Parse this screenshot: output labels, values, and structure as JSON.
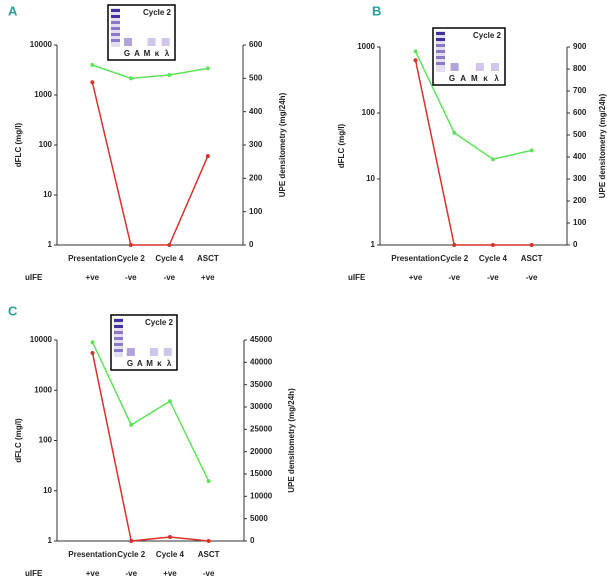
{
  "chart_data": [
    {
      "type": "line",
      "label": "A",
      "log_scale": true,
      "categories": [
        "Presentation",
        "Cycle 2",
        "Cycle 4",
        "ASCT"
      ],
      "ylabel": "dFLC (mg/l)",
      "y2label": "UPE densitometry (mg/24h)",
      "ylim": [
        1,
        10000
      ],
      "yticks": [
        1,
        10,
        100,
        1000,
        10000
      ],
      "y2lim": [
        0,
        600
      ],
      "y2ticks": [
        0,
        100,
        200,
        300,
        400,
        500,
        600
      ],
      "series": [
        {
          "color": "#d8322c",
          "values": [
            1800,
            1,
            1,
            60
          ]
        },
        {
          "color": "#5ee35a",
          "axis": "y2",
          "values": [
            540,
            500,
            510,
            530
          ]
        }
      ],
      "row_label": "uIFE",
      "row_values": [
        "+ve",
        "-ve",
        "-ve",
        "+ve"
      ],
      "inset_title": "Cycle 2",
      "inset_lanes": [
        "G",
        "A",
        "M",
        "κ",
        "λ"
      ]
    },
    {
      "type": "line",
      "label": "B",
      "log_scale": true,
      "categories": [
        "Presentation",
        "Cycle 2",
        "Cycle 4",
        "ASCT"
      ],
      "ylabel": "dFLC (mg/l)",
      "y2label": "UPE densitometry (mg/24h)",
      "ylim": [
        1,
        1000
      ],
      "yticks": [
        1,
        10,
        100,
        1000
      ],
      "y2lim": [
        0,
        900
      ],
      "y2ticks": [
        0,
        100,
        200,
        300,
        400,
        500,
        600,
        700,
        800,
        900
      ],
      "series": [
        {
          "color": "#d8322c",
          "values": [
            630,
            1,
            1,
            1
          ]
        },
        {
          "color": "#5ee35a",
          "axis": "y2",
          "values": [
            880,
            510,
            390,
            430
          ]
        }
      ],
      "row_label": "uIFE",
      "row_values": [
        "+ve",
        "-ve",
        "-ve",
        "-ve"
      ],
      "inset_title": "Cycle 2",
      "inset_lanes": [
        "G",
        "A",
        "M",
        "κ",
        "λ"
      ]
    },
    {
      "type": "line",
      "label": "C",
      "log_scale": true,
      "categories": [
        "Presentation",
        "Cycle 2",
        "Cycle 4",
        "ASCT"
      ],
      "ylabel": "dFLC (mg/l)",
      "y2label": "UPE densitometry (mg/24h)",
      "ylim": [
        1,
        10000
      ],
      "yticks": [
        1,
        10,
        100,
        1000,
        10000
      ],
      "y2lim": [
        0,
        45000
      ],
      "y2ticks": [
        0,
        5000,
        10000,
        15000,
        20000,
        25000,
        30000,
        35000,
        40000,
        45000
      ],
      "series": [
        {
          "color": "#d8322c",
          "values": [
            5500,
            1,
            1.2,
            1
          ]
        },
        {
          "color": "#5ee35a",
          "axis": "y2",
          "values": [
            44500,
            26000,
            31300,
            13400
          ]
        }
      ],
      "row_label": "uIFE",
      "row_values": [
        "+ve",
        "-ve",
        "+ve",
        "-ve"
      ],
      "inset_title": "Cycle 2",
      "inset_lanes": [
        "G",
        "A",
        "M",
        "κ",
        "λ"
      ]
    }
  ]
}
